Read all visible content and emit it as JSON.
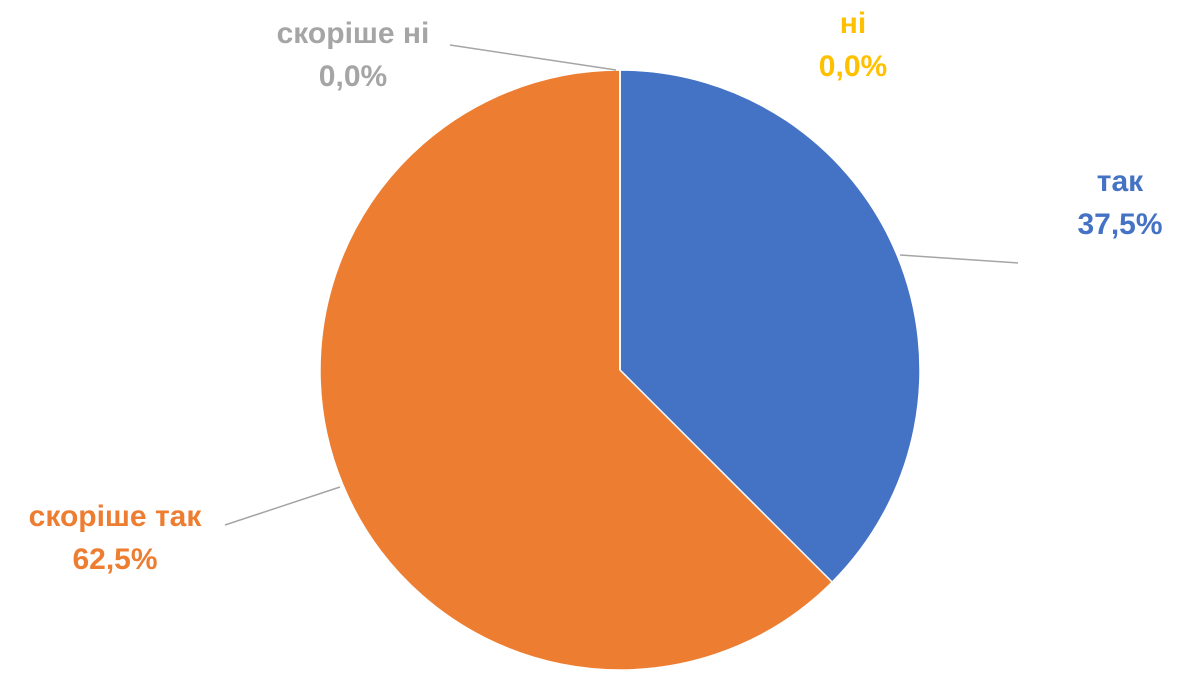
{
  "chart_data": {
    "type": "pie",
    "categories": [
      "так",
      "скоріше так",
      "скоріше ні",
      "ні"
    ],
    "values": [
      37.5,
      62.5,
      0,
      0
    ],
    "value_labels": [
      "37,5%",
      "62,5%",
      "0,0%",
      "0,0%"
    ],
    "colors": [
      "#4472c4",
      "#ed7d31",
      "#a5a5a5",
      "#ffc000"
    ]
  }
}
